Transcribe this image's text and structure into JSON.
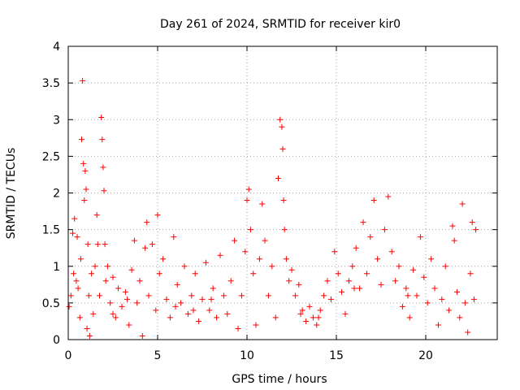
{
  "chart_data": {
    "type": "scatter",
    "title": "Day 261 of 2024, SRMTID for receiver kir0",
    "xlabel": "GPS time / hours",
    "ylabel": "SRMTID / TECUs",
    "xlim": [
      0,
      24
    ],
    "ylim": [
      0,
      4
    ],
    "xticks": [
      0,
      5,
      10,
      15,
      20
    ],
    "xtick_labels": [
      "0",
      "5",
      "10",
      "15",
      "20"
    ],
    "yticks": [
      0,
      0.5,
      1,
      1.5,
      2,
      2.5,
      3,
      3.5,
      4
    ],
    "ytick_labels": [
      "0",
      "0.5",
      "1",
      "1.5",
      "2",
      "2.5",
      "3",
      "3.5",
      "4"
    ],
    "grid": true,
    "marker": "+",
    "color": "#ff0000",
    "series": [
      {
        "name": "kir0",
        "points": [
          [
            0.05,
            0.45
          ],
          [
            0.15,
            0.6
          ],
          [
            0.25,
            1.45
          ],
          [
            0.3,
            0.9
          ],
          [
            0.35,
            1.65
          ],
          [
            0.45,
            0.8
          ],
          [
            0.5,
            1.4
          ],
          [
            0.55,
            0.7
          ],
          [
            0.65,
            0.3
          ],
          [
            0.7,
            1.1
          ],
          [
            0.75,
            2.73
          ],
          [
            0.8,
            3.53
          ],
          [
            0.85,
            2.4
          ],
          [
            0.9,
            1.9
          ],
          [
            0.95,
            2.3
          ],
          [
            1.0,
            2.05
          ],
          [
            1.05,
            0.15
          ],
          [
            1.1,
            1.3
          ],
          [
            1.15,
            0.6
          ],
          [
            1.2,
            0.05
          ],
          [
            1.3,
            0.9
          ],
          [
            1.4,
            0.35
          ],
          [
            1.5,
            1.0
          ],
          [
            1.6,
            1.7
          ],
          [
            1.65,
            1.3
          ],
          [
            1.75,
            0.6
          ],
          [
            1.85,
            3.03
          ],
          [
            1.9,
            2.73
          ],
          [
            1.95,
            2.35
          ],
          [
            2.0,
            2.03
          ],
          [
            2.05,
            1.3
          ],
          [
            2.1,
            0.8
          ],
          [
            2.2,
            1.0
          ],
          [
            2.35,
            0.5
          ],
          [
            2.5,
            0.85
          ],
          [
            2.65,
            0.3
          ],
          [
            2.8,
            0.7
          ],
          [
            3.0,
            0.45
          ],
          [
            3.2,
            0.65
          ],
          [
            3.4,
            0.2
          ],
          [
            3.55,
            0.95
          ],
          [
            3.7,
            1.35
          ],
          [
            3.85,
            0.5
          ],
          [
            4.0,
            0.8
          ],
          [
            4.15,
            0.05
          ],
          [
            4.3,
            1.25
          ],
          [
            4.4,
            1.6
          ],
          [
            4.5,
            0.6
          ],
          [
            4.7,
            1.3
          ],
          [
            4.9,
            0.4
          ],
          [
            5.0,
            1.7
          ],
          [
            5.1,
            0.9
          ],
          [
            5.3,
            1.1
          ],
          [
            5.5,
            0.55
          ],
          [
            5.7,
            0.3
          ],
          [
            5.9,
            1.4
          ],
          [
            6.1,
            0.75
          ],
          [
            6.3,
            0.5
          ],
          [
            6.5,
            1.0
          ],
          [
            6.7,
            0.35
          ],
          [
            6.9,
            0.6
          ],
          [
            7.1,
            0.9
          ],
          [
            7.3,
            0.25
          ],
          [
            7.5,
            0.55
          ],
          [
            7.7,
            1.05
          ],
          [
            7.9,
            0.4
          ],
          [
            8.1,
            0.7
          ],
          [
            8.3,
            0.3
          ],
          [
            8.5,
            1.15
          ],
          [
            8.7,
            0.6
          ],
          [
            8.9,
            0.35
          ],
          [
            9.1,
            0.8
          ],
          [
            9.3,
            1.35
          ],
          [
            9.5,
            0.15
          ],
          [
            9.7,
            0.6
          ],
          [
            9.9,
            1.2
          ],
          [
            10.0,
            1.9
          ],
          [
            10.1,
            2.05
          ],
          [
            10.2,
            1.5
          ],
          [
            10.35,
            0.9
          ],
          [
            10.5,
            0.2
          ],
          [
            10.7,
            1.1
          ],
          [
            10.85,
            1.85
          ],
          [
            11.0,
            1.35
          ],
          [
            11.2,
            0.6
          ],
          [
            11.4,
            1.0
          ],
          [
            11.6,
            0.3
          ],
          [
            11.75,
            2.2
          ],
          [
            11.85,
            3.0
          ],
          [
            11.95,
            2.9
          ],
          [
            12.0,
            2.6
          ],
          [
            12.05,
            1.9
          ],
          [
            12.1,
            1.5
          ],
          [
            12.2,
            1.1
          ],
          [
            12.35,
            0.8
          ],
          [
            12.5,
            0.95
          ],
          [
            12.7,
            0.6
          ],
          [
            12.9,
            0.75
          ],
          [
            13.1,
            0.4
          ],
          [
            13.3,
            0.25
          ],
          [
            13.5,
            0.45
          ],
          [
            13.7,
            0.3
          ],
          [
            13.9,
            0.2
          ],
          [
            14.1,
            0.4
          ],
          [
            14.3,
            0.6
          ],
          [
            14.5,
            0.8
          ],
          [
            14.7,
            0.55
          ],
          [
            14.9,
            1.2
          ],
          [
            15.1,
            0.9
          ],
          [
            15.3,
            0.65
          ],
          [
            15.5,
            0.35
          ],
          [
            15.7,
            0.8
          ],
          [
            15.9,
            1.0
          ],
          [
            16.1,
            1.25
          ],
          [
            16.3,
            0.7
          ],
          [
            16.5,
            1.6
          ],
          [
            16.7,
            0.9
          ],
          [
            16.9,
            1.4
          ],
          [
            17.1,
            1.9
          ],
          [
            17.3,
            1.1
          ],
          [
            17.5,
            0.75
          ],
          [
            17.7,
            1.5
          ],
          [
            17.9,
            1.95
          ],
          [
            18.1,
            1.2
          ],
          [
            18.3,
            0.8
          ],
          [
            18.5,
            1.0
          ],
          [
            18.7,
            0.45
          ],
          [
            18.9,
            0.7
          ],
          [
            19.1,
            0.3
          ],
          [
            19.3,
            0.95
          ],
          [
            19.5,
            0.6
          ],
          [
            19.7,
            1.4
          ],
          [
            19.9,
            0.85
          ],
          [
            20.1,
            0.5
          ],
          [
            20.3,
            1.1
          ],
          [
            20.5,
            0.7
          ],
          [
            20.7,
            0.2
          ],
          [
            20.9,
            0.55
          ],
          [
            21.1,
            1.0
          ],
          [
            21.3,
            0.4
          ],
          [
            21.5,
            1.55
          ],
          [
            21.6,
            1.35
          ],
          [
            21.75,
            0.65
          ],
          [
            21.9,
            0.3
          ],
          [
            22.05,
            1.85
          ],
          [
            22.2,
            0.5
          ],
          [
            22.35,
            0.1
          ],
          [
            22.5,
            0.9
          ],
          [
            22.6,
            1.6
          ],
          [
            22.7,
            0.55
          ],
          [
            22.8,
            1.5
          ],
          [
            2.5,
            0.35
          ],
          [
            3.3,
            0.55
          ],
          [
            6.0,
            0.45
          ],
          [
            7.0,
            0.4
          ],
          [
            8.0,
            0.55
          ],
          [
            13.0,
            0.35
          ],
          [
            14.0,
            0.3
          ],
          [
            16.0,
            0.7
          ],
          [
            19.0,
            0.6
          ]
        ]
      }
    ]
  }
}
